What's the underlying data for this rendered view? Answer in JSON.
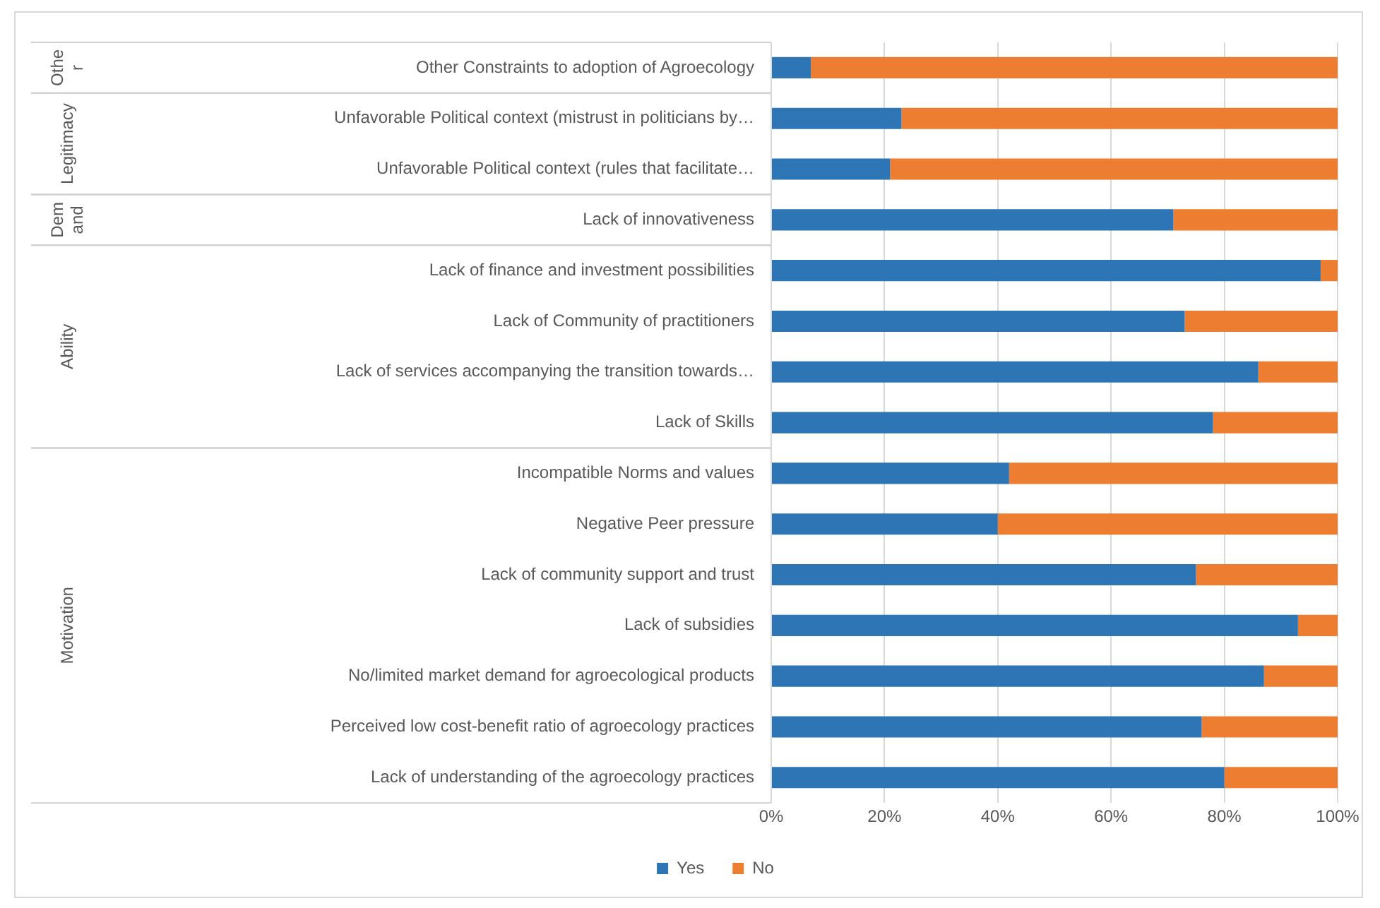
{
  "chart_data": {
    "type": "bar",
    "orientation": "horizontal",
    "stacked": true,
    "categories": [
      "Other Constraints to adoption of Agroecology",
      "Unfavorable Political context (mistrust in politicians by…",
      "Unfavorable Political context (rules that facilitate…",
      "Lack of innovativeness",
      "Lack of finance and investment possibilities",
      "Lack of Community of practitioners",
      "Lack of services accompanying the transition towards…",
      "Lack of Skills",
      "Incompatible Norms and values",
      "Negative Peer pressure",
      "Lack of community support and trust",
      "Lack of subsidies",
      "No/limited market demand for agroecological products",
      "Perceived low cost-benefit ratio of agroecology practices",
      "Lack of understanding of the agroecology practices"
    ],
    "series": [
      {
        "name": "Yes",
        "color": "#2e75b6",
        "values": [
          7,
          23,
          21,
          71,
          97,
          73,
          86,
          78,
          42,
          40,
          75,
          93,
          87,
          76,
          80
        ]
      },
      {
        "name": "No",
        "color": "#ed7d31",
        "values": [
          93,
          77,
          79,
          29,
          3,
          27,
          14,
          22,
          58,
          60,
          25,
          7,
          13,
          24,
          20
        ]
      }
    ],
    "xlim": [
      0,
      100
    ],
    "xticks": [
      {
        "value": 0,
        "label": "0%"
      },
      {
        "value": 20,
        "label": "20%"
      },
      {
        "value": 40,
        "label": "40%"
      },
      {
        "value": 60,
        "label": "60%"
      },
      {
        "value": 80,
        "label": "80%"
      },
      {
        "value": 100,
        "label": "100%"
      }
    ],
    "grid": "x",
    "legend": "bottom",
    "annotations": [
      "Other",
      "Legitimacy",
      "Demand",
      "Ability",
      "Motivation"
    ]
  }
}
